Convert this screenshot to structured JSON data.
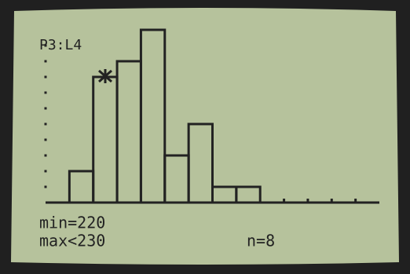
{
  "chart_data": {
    "type": "histogram",
    "bins": [
      210,
      220,
      230,
      240,
      250,
      260,
      270,
      280,
      290
    ],
    "values": [
      2,
      8,
      9,
      11,
      3,
      5,
      1,
      1
    ],
    "color": "#222222",
    "xlim": [
      200,
      340
    ],
    "xticks": [
      300,
      310,
      320,
      330
    ],
    "ylim": [
      0,
      11
    ],
    "yticks": [
      1,
      2,
      3,
      4,
      5,
      6,
      7,
      8,
      9,
      10
    ],
    "trace": {
      "plot": "P3:L4",
      "min": "min=220",
      "max": "max<230",
      "n": "n=8"
    }
  }
}
